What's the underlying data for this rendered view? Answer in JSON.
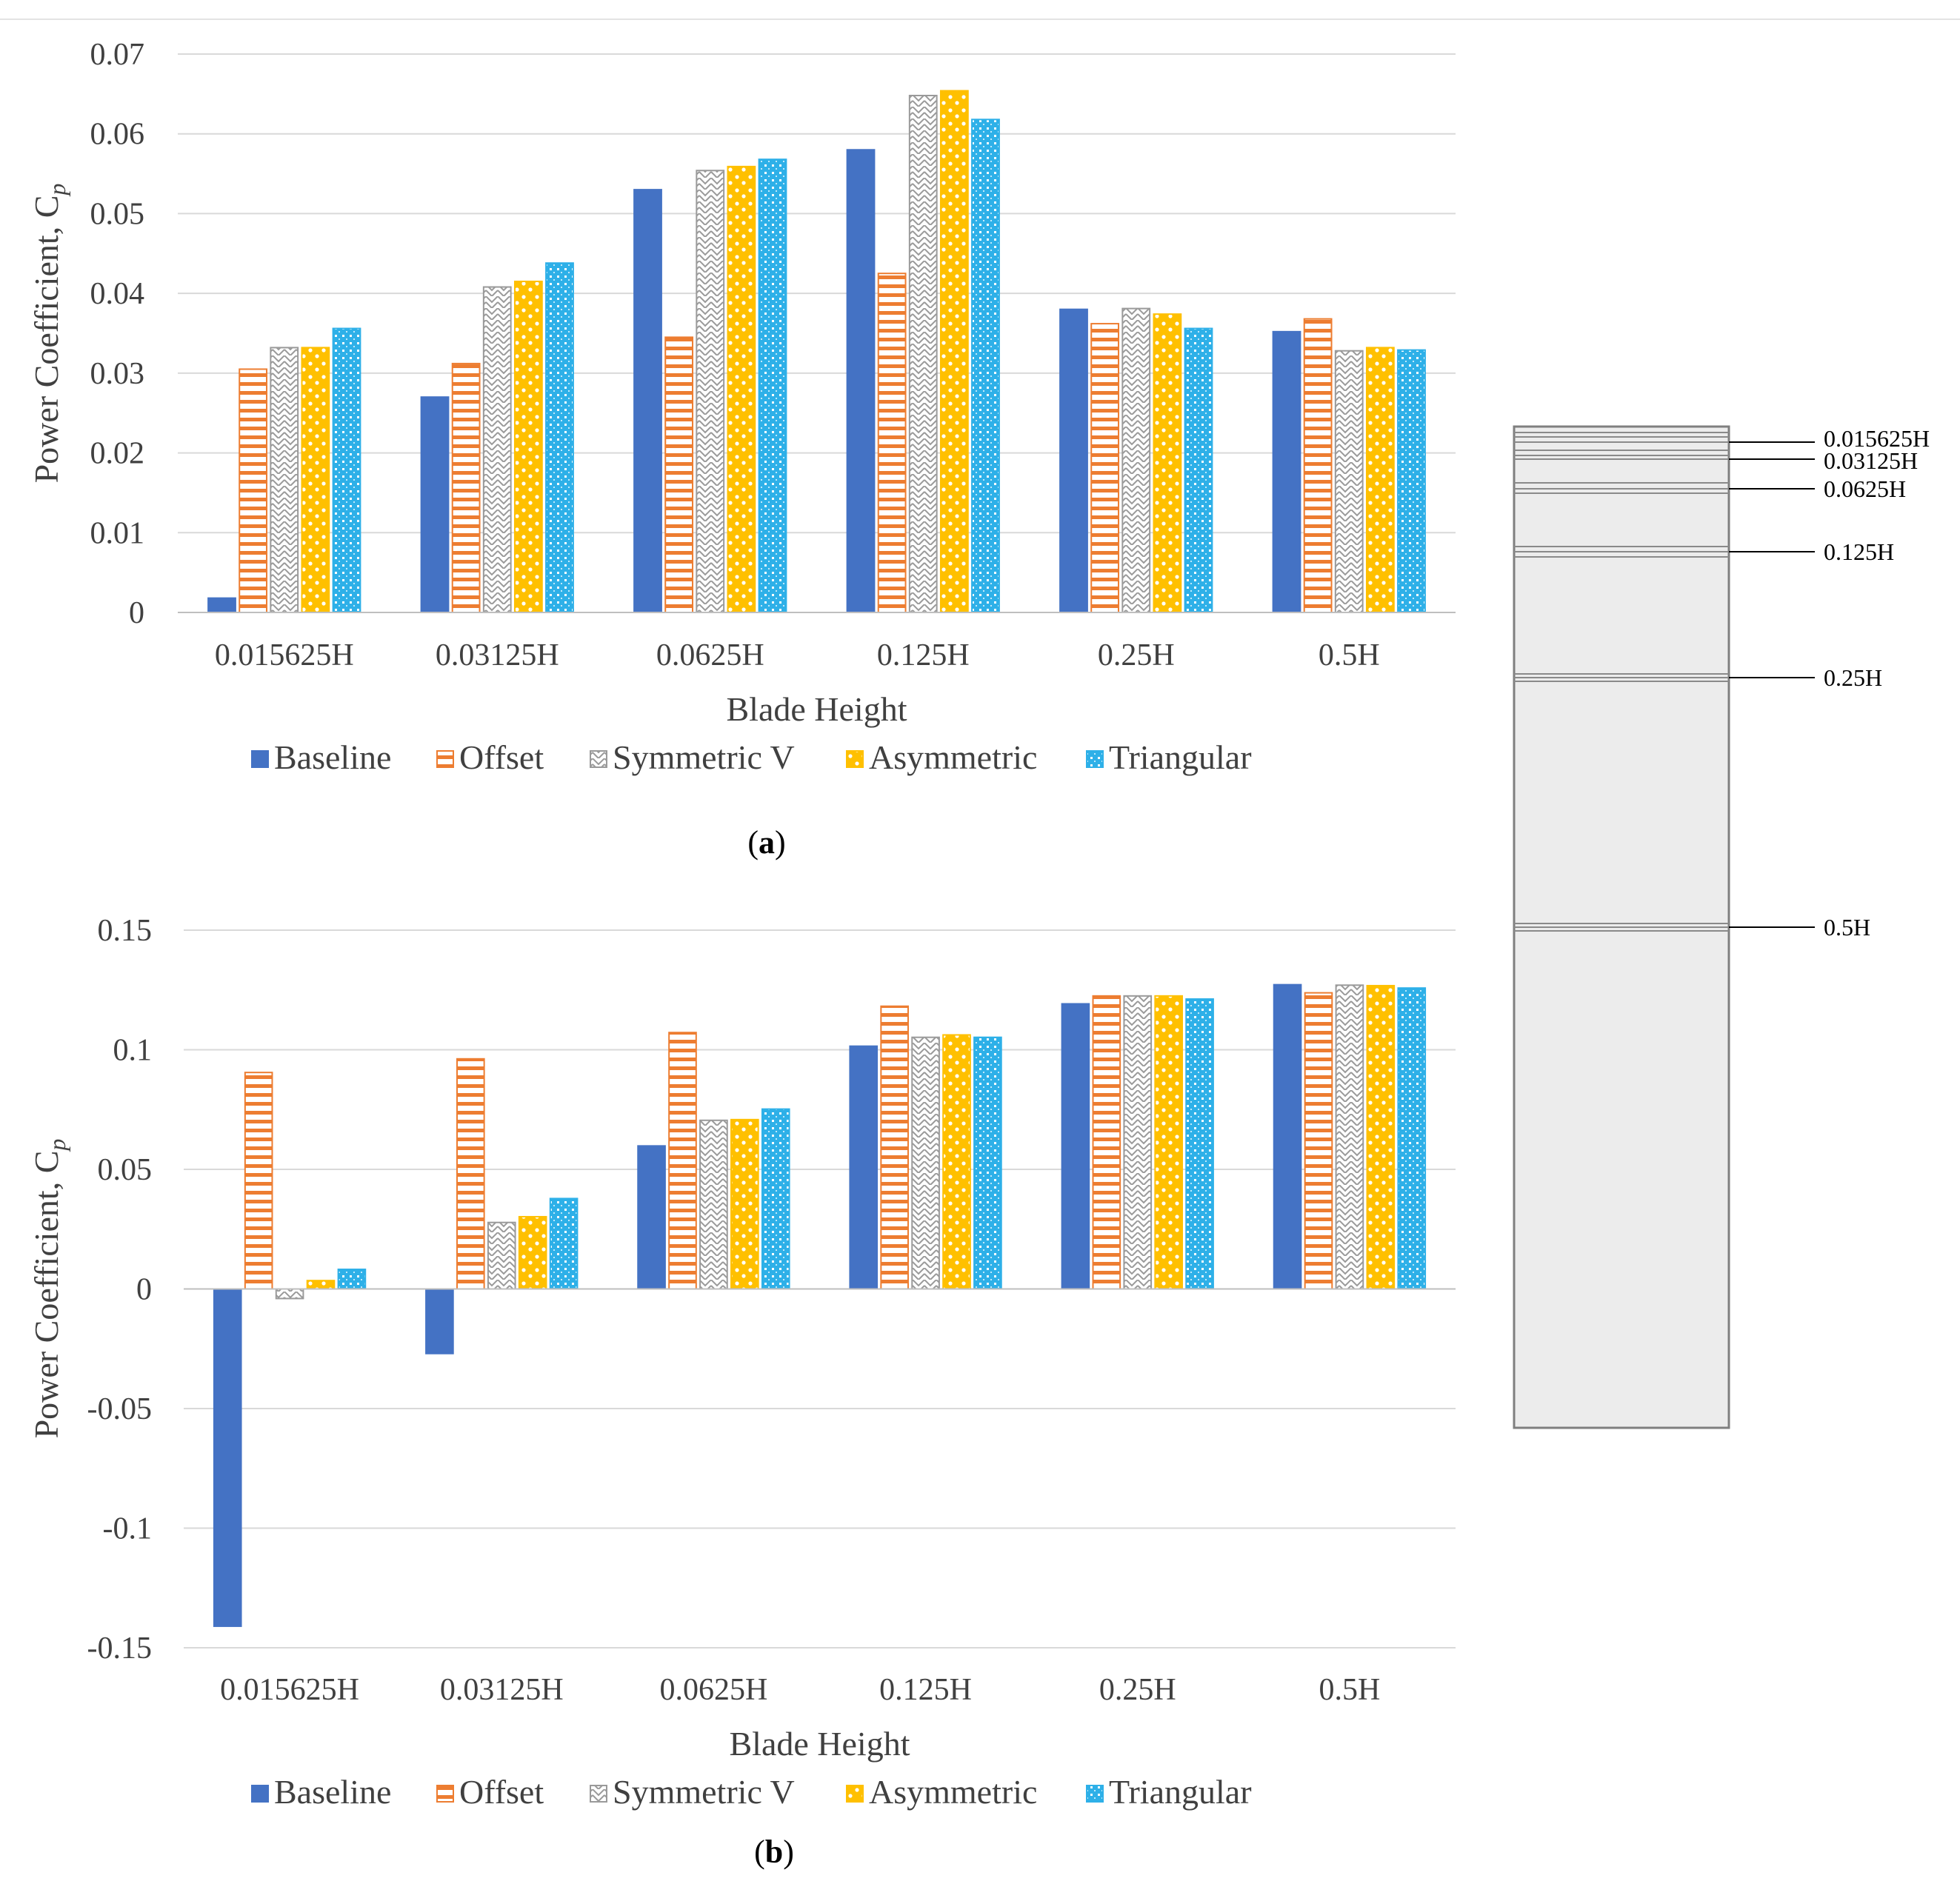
{
  "figure": {
    "caption_a": "(a)",
    "caption_b": "(b)",
    "caption_a_bold": "a",
    "caption_b_bold": "b"
  },
  "diagram": {
    "labels": [
      "0.015625H",
      "0.03125H",
      "0.0625H",
      "0.125H",
      "0.25H",
      "0.5H"
    ]
  },
  "colors": {
    "baseline": "#4472C4",
    "offset": "#ED7D31",
    "symmetric": "#A5A5A5",
    "asymmetric": "#FFC000",
    "triangular": "#2EB0E8"
  },
  "chart_data": [
    {
      "type": "bar",
      "title": "",
      "xlabel": "Blade Height",
      "ylabel": "Power Coefficient, C",
      "ylabel_sub": "p",
      "categories": [
        "0.015625H",
        "0.03125H",
        "0.0625H",
        "0.125H",
        "0.25H",
        "0.5H"
      ],
      "ylim": [
        0,
        0.07
      ],
      "yticks": [
        "0",
        "0.01",
        "0.02",
        "0.03",
        "0.04",
        "0.05",
        "0.06",
        "0.07"
      ],
      "ytick_values": [
        0,
        0.01,
        0.02,
        0.03,
        0.04,
        0.05,
        0.06,
        0.07
      ],
      "series": [
        {
          "name": "Baseline",
          "values": [
            0.0018,
            0.027,
            0.053,
            0.058,
            0.038,
            0.0352
          ]
        },
        {
          "name": "Offset",
          "values": [
            0.0305,
            0.0312,
            0.0345,
            0.0425,
            0.0362,
            0.0368
          ]
        },
        {
          "name": "Symmetric V",
          "values": [
            0.0332,
            0.0408,
            0.0554,
            0.0648,
            0.0381,
            0.0328
          ]
        },
        {
          "name": "Asymmetric",
          "values": [
            0.0332,
            0.0415,
            0.0559,
            0.0654,
            0.0374,
            0.0332
          ]
        },
        {
          "name": "Triangular",
          "values": [
            0.0356,
            0.0438,
            0.0568,
            0.0618,
            0.0356,
            0.0329
          ]
        }
      ],
      "legend": "bottom"
    },
    {
      "type": "bar",
      "title": "",
      "xlabel": "Blade Height",
      "ylabel": "Power Coefficient, C",
      "ylabel_sub": "p",
      "categories": [
        "0.015625H",
        "0.03125H",
        "0.0625H",
        "0.125H",
        "0.25H",
        "0.5H"
      ],
      "ylim": [
        -0.15,
        0.15
      ],
      "yticks": [
        "-0.15",
        "-0.1",
        "-0.05",
        "0",
        "0.05",
        "0.1",
        "0.15"
      ],
      "ytick_values": [
        -0.15,
        -0.1,
        -0.05,
        0,
        0.05,
        0.1,
        0.15
      ],
      "series": [
        {
          "name": "Baseline",
          "values": [
            -0.141,
            -0.027,
            0.0598,
            0.1015,
            0.1192,
            0.1272
          ]
        },
        {
          "name": "Offset",
          "values": [
            0.0905,
            0.0962,
            0.1072,
            0.1182,
            0.1225,
            0.1238
          ]
        },
        {
          "name": "Symmetric V",
          "values": [
            -0.004,
            0.0278,
            0.0705,
            0.1052,
            0.1225,
            0.127
          ]
        },
        {
          "name": "Asymmetric",
          "values": [
            0.0035,
            0.0302,
            0.0708,
            0.1062,
            0.1225,
            0.1268
          ]
        },
        {
          "name": "Triangular",
          "values": [
            0.0082,
            0.0378,
            0.0752,
            0.1052,
            0.1212,
            0.1258
          ]
        }
      ],
      "legend": "bottom"
    }
  ]
}
